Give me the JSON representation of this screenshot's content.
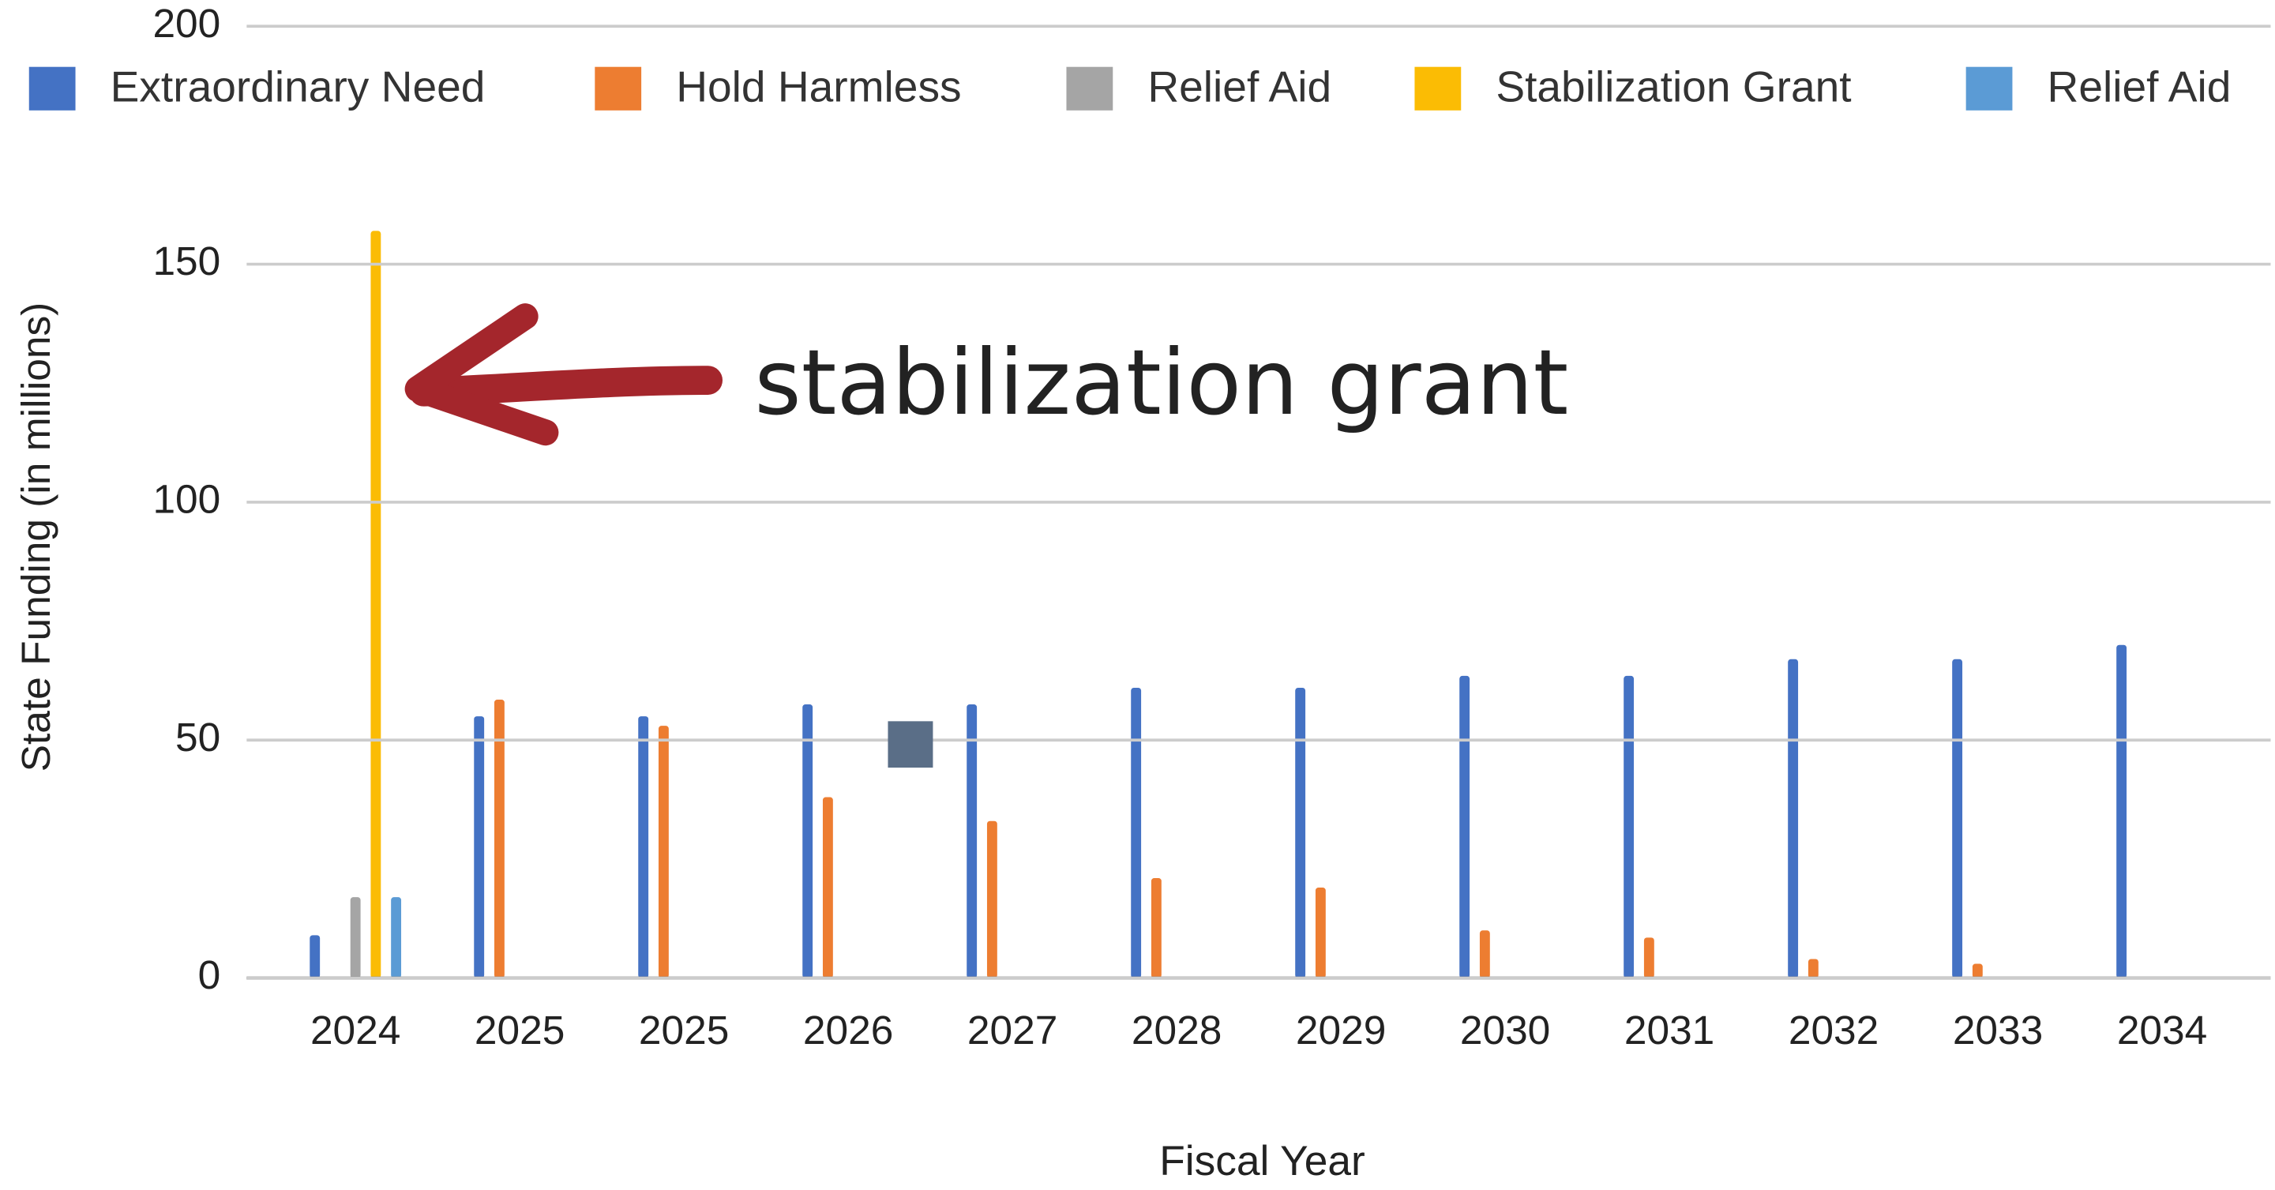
{
  "chart_data": {
    "type": "bar",
    "x_label": "Fiscal Year",
    "y_label": "State Funding (in millions)",
    "annotation": "stabilization grant",
    "categories": [
      "2024",
      "2025",
      "2025",
      "2026",
      "2027",
      "2028",
      "2029",
      "2030",
      "2031",
      "2032",
      "2033",
      "2034"
    ],
    "series": [
      {
        "name": "Extraordinary Need",
        "color": "#4472c4",
        "values": [
          9,
          55,
          55,
          57.5,
          57.5,
          61,
          61,
          63.5,
          63.5,
          67,
          67,
          70
        ]
      },
      {
        "name": "Hold Harmless",
        "color": "#ed7d31",
        "values": [
          null,
          58.5,
          53,
          38,
          33,
          21,
          19,
          10,
          8.5,
          4,
          3,
          null
        ]
      },
      {
        "name": "Relief Aid",
        "color": "#a5a5a5",
        "values": [
          17,
          null,
          null,
          null,
          null,
          null,
          null,
          null,
          null,
          null,
          null,
          null
        ]
      },
      {
        "name": "Stabilization Grant",
        "color": "#fbbc04",
        "values": [
          157,
          null,
          null,
          null,
          null,
          null,
          null,
          null,
          null,
          null,
          null,
          null
        ]
      },
      {
        "name": "Relief Aid",
        "color": "#5b9bd5",
        "values": [
          17,
          null,
          null,
          null,
          null,
          null,
          null,
          null,
          null,
          null,
          null,
          null
        ]
      }
    ],
    "ylim": [
      0,
      200
    ],
    "yticks": [
      0,
      50,
      100,
      150,
      200
    ],
    "grid": true,
    "legend": "top"
  }
}
